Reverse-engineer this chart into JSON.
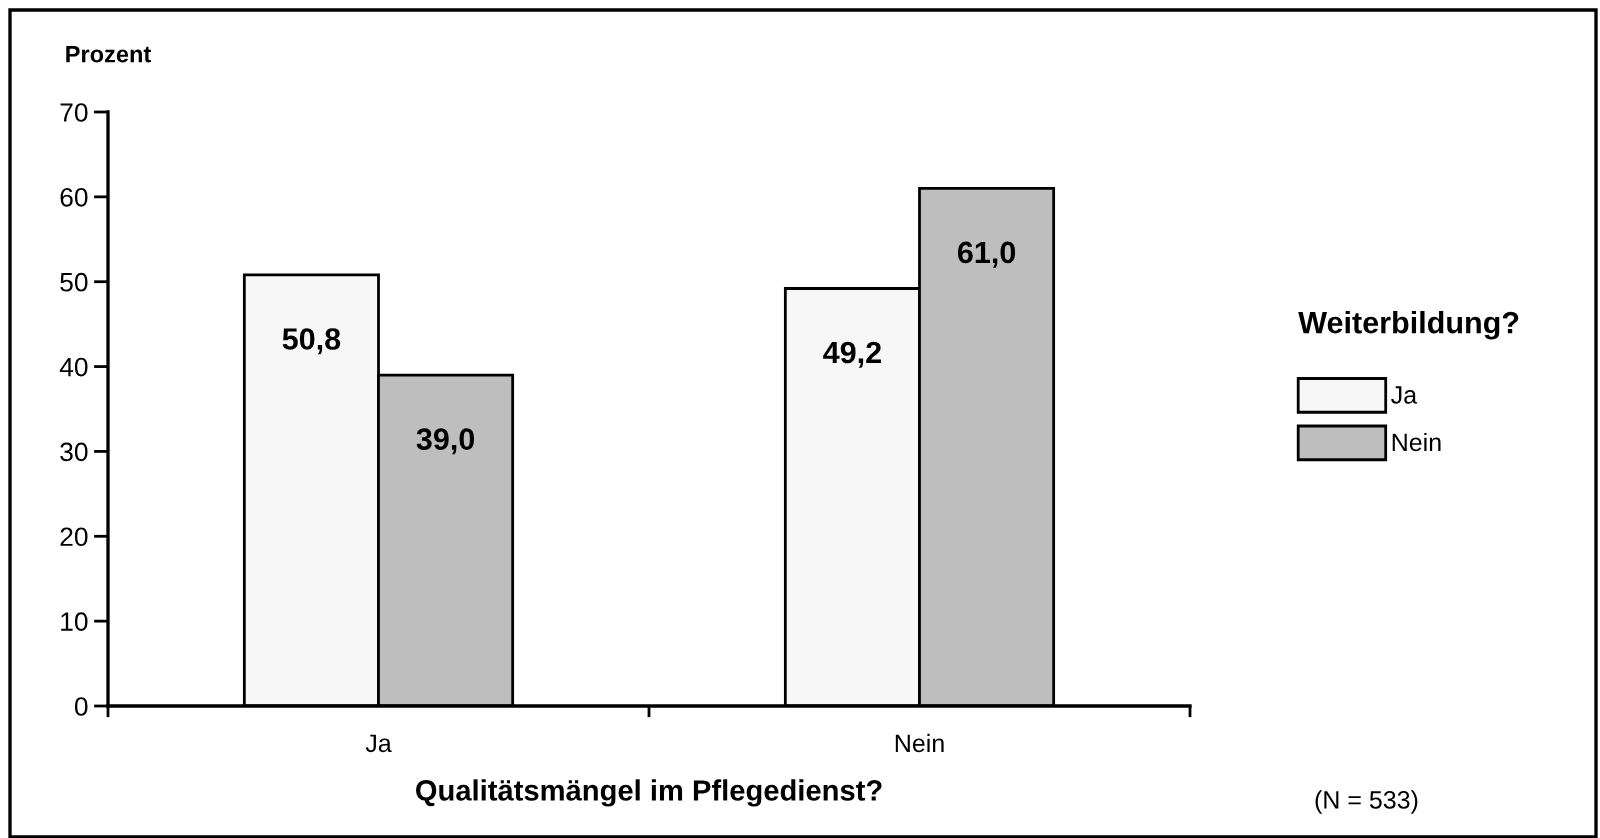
{
  "chart_data": {
    "type": "bar",
    "categories": [
      "Ja",
      "Nein"
    ],
    "series": [
      {
        "name": "Ja",
        "color": "#f7f7f7",
        "values": [
          50.8,
          49.2
        ],
        "value_labels": [
          "50,8",
          "49,2"
        ]
      },
      {
        "name": "Nein",
        "color": "#bebebe",
        "values": [
          39.0,
          61.0
        ],
        "value_labels": [
          "39,0",
          "61,0"
        ]
      }
    ],
    "ylabel": "Prozent",
    "xlabel": "Qualitätsmängel im Pflegedienst?",
    "legend_title": "Weiterbildung?",
    "legend": "right",
    "ylim": [
      0,
      70
    ],
    "yticks": [
      0,
      10,
      20,
      30,
      40,
      50,
      60,
      70
    ],
    "grid": false,
    "annotations": [
      "(N = 533)"
    ]
  }
}
